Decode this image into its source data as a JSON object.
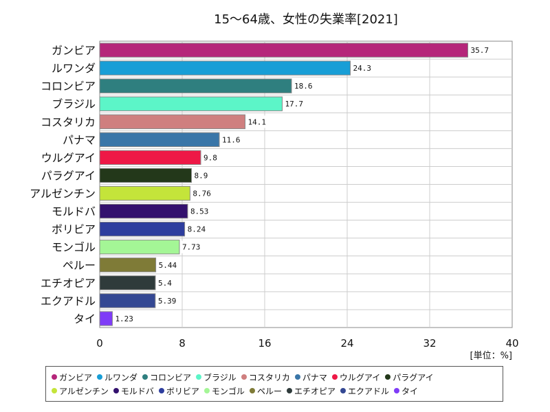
{
  "chart_data": {
    "type": "bar",
    "orientation": "horizontal",
    "title": "15～64歳、女性の失業率[2021]",
    "unit_label": "[単位：%]",
    "xlim": [
      0,
      40
    ],
    "xticks": [
      "0",
      "8",
      "16",
      "24",
      "32",
      "40"
    ],
    "grid": true,
    "legend_position": "bottom",
    "categories": [
      "ガンビア",
      "ルワンダ",
      "コロンビア",
      "ブラジル",
      "コスタリカ",
      "パナマ",
      "ウルグアイ",
      "パラグアイ",
      "アルゼンチン",
      "モルドバ",
      "ボリビア",
      "モンゴル",
      "ペルー",
      "エチオピア",
      "エクアドル",
      "タイ"
    ],
    "values": [
      35.7,
      24.3,
      18.6,
      17.7,
      14.1,
      11.6,
      9.8,
      8.9,
      8.76,
      8.53,
      8.24,
      7.73,
      5.44,
      5.4,
      5.39,
      1.23
    ],
    "value_labels": [
      "35.7",
      "24.3",
      "18.6",
      "17.7",
      "14.1",
      "11.6",
      "9.8",
      "8.9",
      "8.76",
      "8.53",
      "8.24",
      "7.73",
      "5.44",
      "5.4",
      "5.39",
      "1.23"
    ],
    "colors": [
      "#b5267a",
      "#189ed6",
      "#2f7f7f",
      "#5cf5c8",
      "#cf7f7f",
      "#3a76a8",
      "#ee1846",
      "#23381a",
      "#c4e43a",
      "#33116e",
      "#2e3e9e",
      "#a4f696",
      "#7f7b37",
      "#2f3b3b",
      "#344893",
      "#7f3cf7"
    ]
  }
}
